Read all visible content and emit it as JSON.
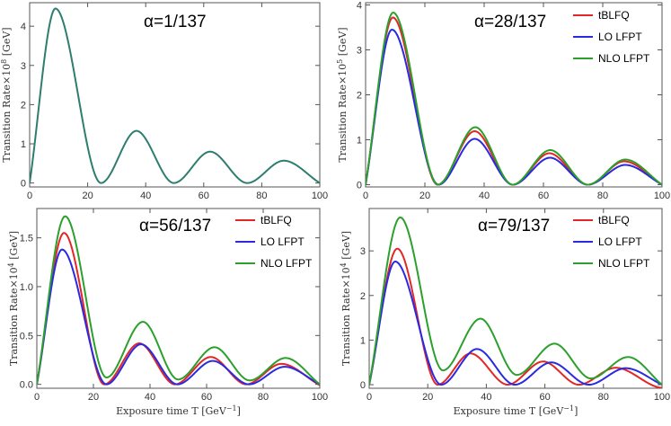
{
  "chart_data": [
    {
      "type": "line",
      "panel": "top-left",
      "annotation": "α=1/137",
      "ylabel": "Transition Rate×10",
      "ylabel_exp": "8",
      "ylabel_unit": " [GeV]",
      "xlabel": "",
      "xlim": [
        0,
        100
      ],
      "ylim": [
        -0.1,
        4.6
      ],
      "xticks": [
        "0",
        "20",
        "40",
        "60",
        "80",
        "100"
      ],
      "yticks": [
        "0",
        "1",
        "2",
        "3",
        "4"
      ],
      "legend": null,
      "series": [
        {
          "name": "NLO LFPT",
          "color": "#2e7d6f",
          "peaks": [
            [
              8.9,
              4.45
            ],
            [
              36.8,
              1.33
            ],
            [
              62.2,
              0.8
            ],
            [
              87.6,
              0.57
            ]
          ],
          "zeros": [
            0,
            24.6,
            49.7,
            75.0,
            100
          ]
        }
      ]
    },
    {
      "type": "line",
      "panel": "top-right",
      "annotation": "α=28/137",
      "ylabel": "Transition Rate×10",
      "ylabel_exp": "5",
      "ylabel_unit": " [GeV]",
      "xlabel": "",
      "xlim": [
        0,
        100
      ],
      "ylim": [
        -0.05,
        4.05
      ],
      "xticks": [
        "0",
        "20",
        "40",
        "60",
        "80",
        "100"
      ],
      "yticks": [
        "0",
        "1",
        "2",
        "3",
        "4"
      ],
      "legend": [
        "tBLFQ",
        "LO LFPT",
        "NLO LFPT"
      ],
      "series": [
        {
          "name": "tBLFQ",
          "color": "#e32626",
          "peaks": [
            [
              9.2,
              3.72
            ],
            [
              36.8,
              1.19
            ],
            [
              62.0,
              0.7
            ],
            [
              87.2,
              0.52
            ]
          ],
          "zeros": [
            0,
            24.3,
            49.6,
            75.0,
            100
          ]
        },
        {
          "name": "LO LFPT",
          "color": "#2a2ae0",
          "peaks": [
            [
              8.9,
              3.45
            ],
            [
              36.8,
              1.02
            ],
            [
              62.2,
              0.6
            ],
            [
              87.6,
              0.44
            ]
          ],
          "zeros": [
            0,
            24.6,
            49.7,
            75.0,
            100
          ]
        },
        {
          "name": "NLO LFPT",
          "color": "#2ca02c",
          "peaks": [
            [
              9.3,
              3.83
            ],
            [
              37.0,
              1.28
            ],
            [
              62.3,
              0.77
            ],
            [
              87.6,
              0.56
            ]
          ],
          "zeros": [
            0,
            24.4,
            49.6,
            75.0,
            100
          ]
        }
      ]
    },
    {
      "type": "line",
      "panel": "bottom-left",
      "annotation": "α=56/137",
      "ylabel": "Transition Rate×10",
      "ylabel_exp": "4",
      "ylabel_unit": " [GeV]",
      "xlabel": "Exposure time T [GeV",
      "xlabel_exp": "−1",
      "xlabel_end": "]",
      "xlim": [
        0,
        100
      ],
      "ylim": [
        -0.04,
        1.8
      ],
      "xticks": [
        "0",
        "20",
        "40",
        "60",
        "80",
        "100"
      ],
      "yticks": [
        "0.0",
        "0.5",
        "1.0",
        "1.5"
      ],
      "legend": [
        "tBLFQ",
        "LO LFPT",
        "NLO LFPT"
      ],
      "series": [
        {
          "name": "tBLFQ",
          "color": "#e32626",
          "peaks": [
            [
              9.6,
              1.55
            ],
            [
              36.2,
              0.42
            ],
            [
              61.5,
              0.28
            ],
            [
              86.4,
              0.21
            ]
          ],
          "zeros": [
            0,
            23.8,
            48.8,
            74.0,
            99.5
          ]
        },
        {
          "name": "LO LFPT",
          "color": "#2a2ae0",
          "peaks": [
            [
              8.9,
              1.38
            ],
            [
              36.8,
              0.41
            ],
            [
              62.2,
              0.24
            ],
            [
              87.6,
              0.18
            ]
          ],
          "zeros": [
            0,
            24.6,
            49.7,
            75.0,
            100
          ]
        },
        {
          "name": "NLO LFPT",
          "color": "#2ca02c",
          "peaks": [
            [
              10.0,
              1.72
            ],
            [
              37.5,
              0.64
            ],
            [
              62.8,
              0.38
            ],
            [
              87.9,
              0.27
            ]
          ],
          "troughs": [
            [
              24.6,
              0.07
            ],
            [
              49.9,
              0.05
            ],
            [
              75.2,
              0.04
            ]
          ],
          "zeros": [
            0,
            100
          ]
        }
      ]
    },
    {
      "type": "line",
      "panel": "bottom-right",
      "annotation": "α=79/137",
      "ylabel": "Transition Rate×10",
      "ylabel_exp": "4",
      "ylabel_unit": " [GeV]",
      "xlabel": "Exposure time T [GeV",
      "xlabel_exp": "−1",
      "xlabel_end": "]",
      "xlim": [
        0,
        100
      ],
      "ylim": [
        -0.08,
        3.95
      ],
      "xticks": [
        "0",
        "20",
        "40",
        "60",
        "80",
        "100"
      ],
      "yticks": [
        "0",
        "1",
        "2",
        "3"
      ],
      "legend": [
        "tBLFQ",
        "LO LFPT",
        "NLO LFPT"
      ],
      "series": [
        {
          "name": "tBLFQ",
          "color": "#e32626",
          "peaks": [
            [
              9.6,
              3.05
            ],
            [
              34.6,
              0.7
            ],
            [
              59.4,
              0.52
            ],
            [
              84.2,
              0.38
            ]
          ],
          "zeros": [
            0,
            23.4,
            47.3,
            71.6,
            96.3
          ]
        },
        {
          "name": "LO LFPT",
          "color": "#2a2ae0",
          "peaks": [
            [
              8.9,
              2.76
            ],
            [
              36.8,
              0.8
            ],
            [
              62.2,
              0.5
            ],
            [
              87.6,
              0.37
            ]
          ],
          "zeros": [
            0,
            24.6,
            49.7,
            75.0,
            100
          ]
        },
        {
          "name": "NLO LFPT",
          "color": "#2ca02c",
          "peaks": [
            [
              10.6,
              3.75
            ],
            [
              38.0,
              1.48
            ],
            [
              63.3,
              0.92
            ],
            [
              88.4,
              0.62
            ]
          ],
          "troughs": [
            [
              25.2,
              0.32
            ],
            [
              50.4,
              0.22
            ],
            [
              75.7,
              0.14
            ]
          ],
          "zeros": [
            0,
            100
          ]
        }
      ]
    }
  ]
}
